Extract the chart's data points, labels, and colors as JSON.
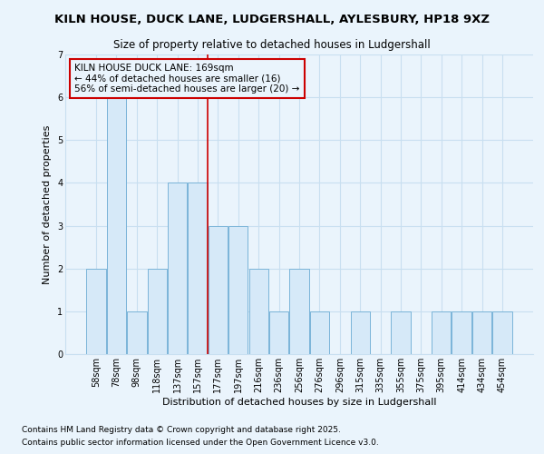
{
  "title": "KILN HOUSE, DUCK LANE, LUDGERSHALL, AYLESBURY, HP18 9XZ",
  "subtitle": "Size of property relative to detached houses in Ludgershall",
  "xlabel": "Distribution of detached houses by size in Ludgershall",
  "ylabel": "Number of detached properties",
  "categories": [
    "58sqm",
    "78sqm",
    "98sqm",
    "118sqm",
    "137sqm",
    "157sqm",
    "177sqm",
    "197sqm",
    "216sqm",
    "236sqm",
    "256sqm",
    "276sqm",
    "296sqm",
    "315sqm",
    "335sqm",
    "355sqm",
    "375sqm",
    "395sqm",
    "414sqm",
    "434sqm",
    "454sqm"
  ],
  "values": [
    2,
    6,
    1,
    2,
    4,
    4,
    3,
    3,
    2,
    1,
    2,
    1,
    0,
    1,
    0,
    1,
    0,
    1,
    1,
    1,
    1
  ],
  "bar_color": "#d6e9f8",
  "bar_edge_color": "#7ab4d8",
  "bar_edge_width": 0.7,
  "vline_x": 6.5,
  "vline_color": "#cc0000",
  "annotation_line1": "KILN HOUSE DUCK LANE: 169sqm",
  "annotation_line2": "← 44% of detached houses are smaller (16)",
  "annotation_line3": "56% of semi-detached houses are larger (20) →",
  "annotation_box_color": "#cc0000",
  "ylim": [
    0,
    7
  ],
  "yticks": [
    0,
    1,
    2,
    3,
    4,
    5,
    6,
    7
  ],
  "grid_color": "#c8dff0",
  "background_color": "#eaf4fc",
  "footnote1": "Contains HM Land Registry data © Crown copyright and database right 2025.",
  "footnote2": "Contains public sector information licensed under the Open Government Licence v3.0.",
  "title_fontsize": 9.5,
  "subtitle_fontsize": 8.5,
  "xlabel_fontsize": 8,
  "ylabel_fontsize": 8,
  "tick_fontsize": 7,
  "annotation_fontsize": 7.5,
  "footnote_fontsize": 6.5
}
